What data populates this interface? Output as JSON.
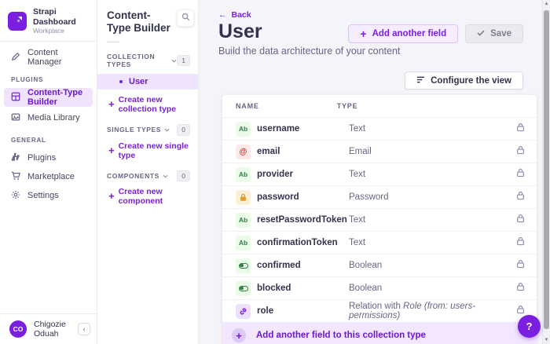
{
  "colors": {
    "primary": "#7a1fe0",
    "primary_light_bg": "#f0e3fd",
    "main_bg": "#f5f4fa",
    "text_dark": "#32324d",
    "text_gray": "#666687",
    "success": "#328048",
    "danger": "#d02b20",
    "warning": "#dfa033"
  },
  "sidebar": {
    "app_title": "Strapi Dashboard",
    "app_subtitle": "Workplace",
    "content_manager_label": "Content Manager",
    "plugins_section_label": "PLUGINS",
    "plugins_items": [
      {
        "label": "Content-Type Builder",
        "active": true
      },
      {
        "label": "Media Library",
        "active": false
      }
    ],
    "general_section_label": "GENERAL",
    "general_items": [
      {
        "label": "Plugins"
      },
      {
        "label": "Marketplace"
      },
      {
        "label": "Settings"
      }
    ],
    "user_initials": "CO",
    "user_name": "Chigozie Oduah",
    "collapse_glyph": "‹"
  },
  "builder_nav": {
    "title": "Content-Type Builder",
    "collection_types": {
      "label": "COLLECTION TYPES",
      "count": "1",
      "active_item": "User",
      "create_label": "Create new collection type"
    },
    "single_types": {
      "label": "SINGLE TYPES",
      "count": "0",
      "create_label": "Create new single type"
    },
    "components": {
      "label": "COMPONENTS",
      "count": "0",
      "create_label": "Create new component"
    }
  },
  "header": {
    "back_label": "Back",
    "title": "User",
    "subtitle": "Build the data architecture of your content",
    "add_field_label": "Add another field",
    "save_label": "Save",
    "configure_label": "Configure the view"
  },
  "table": {
    "columns": {
      "name": "NAME",
      "type": "TYPE"
    },
    "rows": [
      {
        "badge": "text",
        "badge_label": "Ab",
        "name": "username",
        "type": "Text"
      },
      {
        "badge": "email",
        "badge_label": "@",
        "name": "email",
        "type": "Email"
      },
      {
        "badge": "text",
        "badge_label": "Ab",
        "name": "provider",
        "type": "Text"
      },
      {
        "badge": "password",
        "badge_label": "",
        "name": "password",
        "type": "Password"
      },
      {
        "badge": "text",
        "badge_label": "Ab",
        "name": "resetPasswordToken",
        "type": "Text"
      },
      {
        "badge": "text",
        "badge_label": "Ab",
        "name": "confirmationToken",
        "type": "Text"
      },
      {
        "badge": "boolean",
        "badge_label": "",
        "name": "confirmed",
        "type": "Boolean"
      },
      {
        "badge": "boolean",
        "badge_label": "",
        "name": "blocked",
        "type": "Boolean"
      },
      {
        "badge": "relation",
        "badge_label": "",
        "name": "role",
        "type": "Relation with ",
        "type_italic": "Role (from: users-permissions)"
      }
    ],
    "footer_label": "Add another field to this collection type"
  },
  "help_label": "?"
}
